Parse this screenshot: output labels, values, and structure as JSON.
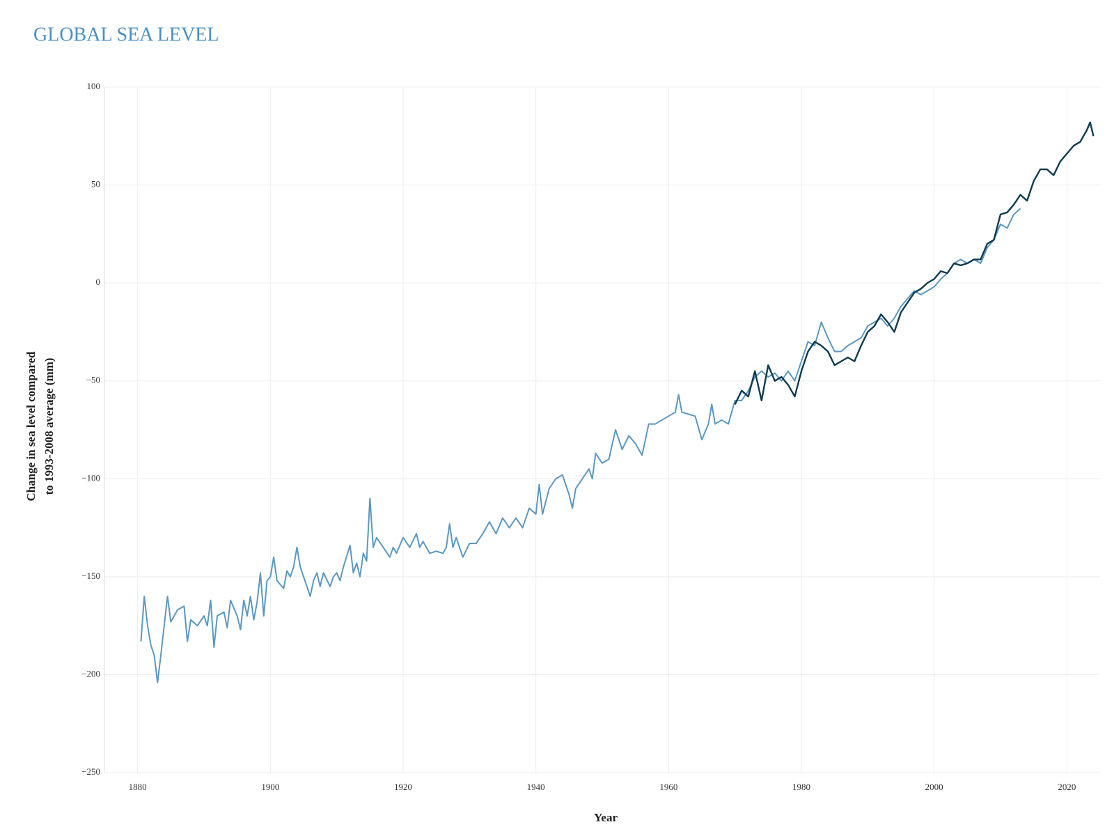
{
  "chart_data": {
    "type": "line",
    "title": "GLOBAL SEA LEVEL",
    "xlabel": "Year",
    "ylabel": [
      "Change in sea level compared",
      "to 1993-2008 average (mm)"
    ],
    "xlim": [
      1875,
      2025
    ],
    "xticks": [
      1880,
      1900,
      1920,
      1940,
      1960,
      1980,
      2000,
      2020
    ],
    "ylim": [
      -250,
      100
    ],
    "yticks": [
      {
        "value": -250,
        "label": "−250"
      },
      {
        "value": -200,
        "label": "−200"
      },
      {
        "value": -150,
        "label": "−150"
      },
      {
        "value": -100,
        "label": "−100"
      },
      {
        "value": -50,
        "label": "−50"
      },
      0,
      50,
      100
    ],
    "grid": true,
    "series": [
      {
        "color": "#5b97c0",
        "x": [
          1880.5,
          1881,
          1881.5,
          1882,
          1882.5,
          1883,
          1883.5,
          1884,
          1884.5,
          1885,
          1886,
          1887,
          1887.5,
          1888,
          1889,
          1890,
          1890.5,
          1891,
          1891.5,
          1892,
          1893,
          1893.5,
          1894,
          1895,
          1895.5,
          1896,
          1896.5,
          1897,
          1897.5,
          1898,
          1898.5,
          1899,
          1899.5,
          1900,
          1900.5,
          1901,
          1902,
          1902.5,
          1903,
          1903.5,
          1904,
          1904.5,
          1905,
          1906,
          1906.5,
          1907,
          1907.5,
          1908,
          1909,
          1909.5,
          1910,
          1910.5,
          1911,
          1912,
          1912.5,
          1913,
          1913.5,
          1914,
          1914.5,
          1915,
          1915.5,
          1916,
          1917,
          1918,
          1918.5,
          1919,
          1920,
          1921,
          1922,
          1922.5,
          1923,
          1924,
          1925,
          1926,
          1926.5,
          1927,
          1927.5,
          1928,
          1929,
          1930,
          1931,
          1932,
          1933,
          1934,
          1935,
          1936,
          1937,
          1938,
          1939,
          1940,
          1940.5,
          1941,
          1942,
          1943,
          1944,
          1945,
          1945.5,
          1946,
          1947,
          1948,
          1948.5,
          1949,
          1950,
          1951,
          1952,
          1953,
          1954,
          1955,
          1956,
          1957,
          1958,
          1959,
          1960,
          1961,
          1961.5,
          1962,
          1963,
          1964,
          1965,
          1966,
          1966.5,
          1967,
          1968,
          1969,
          1970,
          1971,
          1972,
          1973,
          1974,
          1975,
          1976,
          1977,
          1978,
          1979,
          1980,
          1981,
          1982,
          1983,
          1984,
          1985,
          1986,
          1987,
          1988,
          1989,
          1990,
          1991,
          1992,
          1993,
          1994,
          1995,
          1996,
          1997,
          1998,
          1999,
          2000,
          2001,
          2002,
          2003,
          2004,
          2005,
          2006,
          2007,
          2008,
          2009,
          2010,
          2011,
          2012,
          2013
        ],
        "values": [
          -183,
          -160,
          -175,
          -185,
          -190,
          -204,
          -190,
          -175,
          -160,
          -173,
          -167,
          -165,
          -183,
          -172,
          -175,
          -170,
          -175,
          -162,
          -186,
          -170,
          -168,
          -176,
          -162,
          -170,
          -177,
          -162,
          -170,
          -160,
          -172,
          -163,
          -148,
          -170,
          -152,
          -150,
          -140,
          -152,
          -156,
          -147,
          -150,
          -145,
          -135,
          -145,
          -150,
          -160,
          -152,
          -148,
          -155,
          -148,
          -155,
          -150,
          -148,
          -152,
          -145,
          -134,
          -148,
          -143,
          -150,
          -138,
          -142,
          -110,
          -135,
          -130,
          -135,
          -140,
          -135,
          -138,
          -130,
          -135,
          -128,
          -135,
          -132,
          -138,
          -137,
          -138,
          -135,
          -123,
          -135,
          -130,
          -140,
          -133,
          -133,
          -128,
          -122,
          -128,
          -120,
          -125,
          -120,
          -125,
          -115,
          -118,
          -103,
          -118,
          -105,
          -100,
          -98,
          -108,
          -115,
          -105,
          -100,
          -95,
          -100,
          -87,
          -92,
          -90,
          -75,
          -85,
          -78,
          -82,
          -88,
          -72,
          -72,
          -70,
          -68,
          -66,
          -57,
          -66,
          -67,
          -68,
          -80,
          -72,
          -62,
          -72,
          -70,
          -72,
          -60,
          -60,
          -55,
          -48,
          -45,
          -48,
          -46,
          -50,
          -45,
          -50,
          -40,
          -30,
          -32,
          -20,
          -28,
          -35,
          -35,
          -32,
          -30,
          -28,
          -22,
          -20,
          -18,
          -22,
          -18,
          -12,
          -8,
          -4,
          -6,
          -4,
          -2,
          2,
          5,
          10,
          12,
          10,
          12,
          10,
          18,
          22,
          30,
          28,
          35,
          38
        ]
      },
      {
        "color": "#0d3b4f",
        "x": [
          1970,
          1971,
          1972,
          1973,
          1974,
          1975,
          1976,
          1977,
          1978,
          1979,
          1980,
          1981,
          1982,
          1983,
          1984,
          1985,
          1986,
          1987,
          1988,
          1989,
          1990,
          1991,
          1992,
          1993,
          1994,
          1995,
          1996,
          1997,
          1998,
          1999,
          2000,
          2001,
          2002,
          2003,
          2004,
          2005,
          2006,
          2007,
          2008,
          2009,
          2010,
          2011,
          2012,
          2013,
          2014,
          2015,
          2016,
          2017,
          2018,
          2019,
          2020,
          2021,
          2022,
          2023,
          2023.5,
          2024
        ],
        "values": [
          -62,
          -55,
          -58,
          -45,
          -60,
          -42,
          -50,
          -48,
          -52,
          -58,
          -45,
          -35,
          -30,
          -32,
          -35,
          -42,
          -40,
          -38,
          -40,
          -32,
          -25,
          -22,
          -16,
          -20,
          -25,
          -15,
          -10,
          -5,
          -3,
          0,
          2,
          6,
          5,
          10,
          9,
          10,
          12,
          12,
          20,
          22,
          35,
          36,
          40,
          45,
          42,
          52,
          58,
          58,
          55,
          62,
          66,
          70,
          72,
          78,
          82,
          75
        ]
      }
    ]
  }
}
